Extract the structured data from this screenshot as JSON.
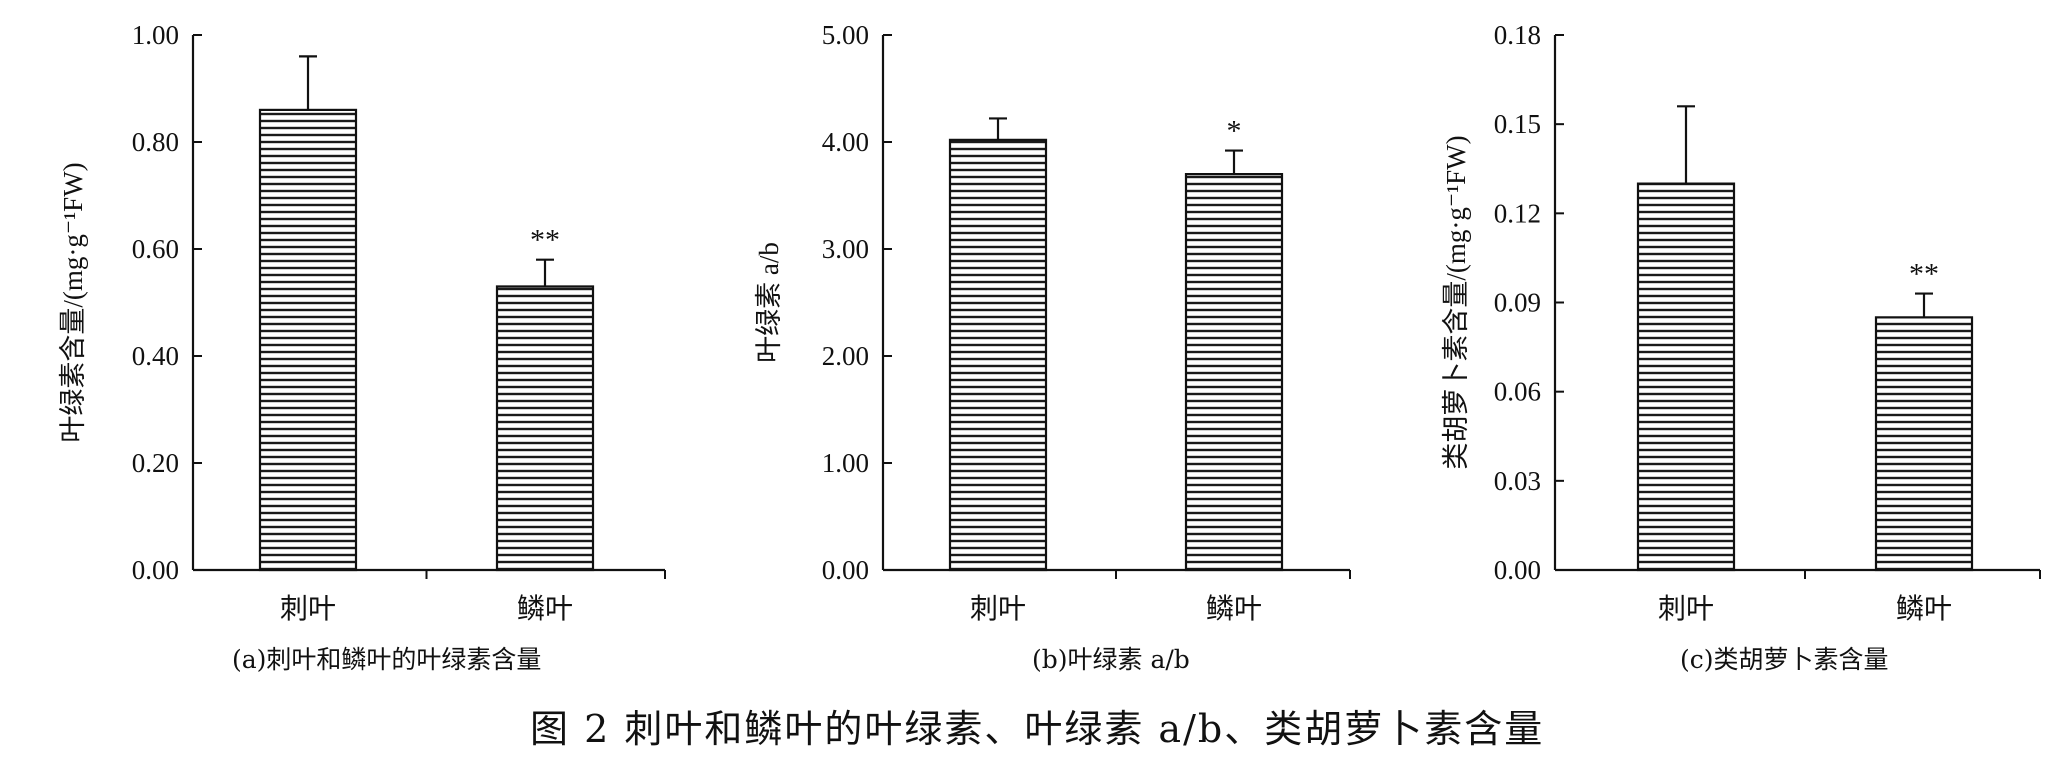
{
  "figure_title": "图 2   刺叶和鳞叶的叶绿素、叶绿素 a/b、类胡萝卜素含量",
  "chart_data": [
    {
      "type": "bar",
      "subcaption": "(a)刺叶和鳞叶的叶绿素含量",
      "categories": [
        "刺叶",
        "鳞叶"
      ],
      "values": [
        0.86,
        0.53
      ],
      "errors": [
        0.1,
        0.05
      ],
      "significance": [
        "",
        "**"
      ],
      "ylabel": "叶绿素含量/(mg·g⁻¹FW)",
      "ylim": [
        0,
        1.0
      ],
      "yticks": [
        "0.00",
        "0.20",
        "0.40",
        "0.60",
        "0.80",
        "1.00"
      ],
      "bar_pattern": "horizontal-stripes",
      "grid": false
    },
    {
      "type": "bar",
      "subcaption": "(b)叶绿素 a/b",
      "categories": [
        "刺叶",
        "鳞叶"
      ],
      "values": [
        4.02,
        3.7
      ],
      "errors": [
        0.2,
        0.22
      ],
      "significance": [
        "",
        "*"
      ],
      "ylabel": "叶绿素 a/b",
      "ylim": [
        0,
        5.0
      ],
      "yticks": [
        "0.00",
        "1.00",
        "2.00",
        "3.00",
        "4.00",
        "5.00"
      ],
      "bar_pattern": "horizontal-stripes",
      "grid": false
    },
    {
      "type": "bar",
      "subcaption": "(c)类胡萝卜素含量",
      "categories": [
        "刺叶",
        "鳞叶"
      ],
      "values": [
        0.13,
        0.085
      ],
      "errors": [
        0.026,
        0.008
      ],
      "significance": [
        "",
        "**"
      ],
      "ylabel": "类胡萝卜素含量/(mg·g⁻¹FW)",
      "ylim": [
        0,
        0.18
      ],
      "yticks": [
        "0.00",
        "0.03",
        "0.06",
        "0.09",
        "0.12",
        "0.15",
        "0.18"
      ],
      "bar_pattern": "horizontal-stripes",
      "grid": false
    }
  ]
}
